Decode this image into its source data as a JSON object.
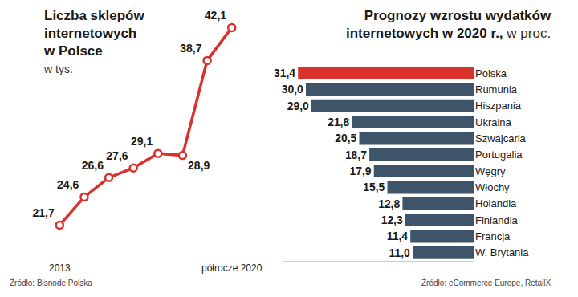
{
  "chart_data": [
    {
      "type": "line",
      "title": "Liczba sklepów internetowych w Polsce",
      "subtitle": "w tys.",
      "categories": [
        "2013",
        null,
        null,
        null,
        null,
        null,
        null,
        "półrocze 2020"
      ],
      "values": [
        21.7,
        24.6,
        26.6,
        27.6,
        29.1,
        28.9,
        38.7,
        42.1
      ],
      "value_labels": [
        "21,7",
        "24,6",
        "26,6",
        "27,6",
        "29,1",
        "28,9",
        "38,7",
        "42,1"
      ],
      "color": "#d9322d",
      "marker": "circle",
      "line_style": "solid",
      "data_labels": true,
      "ylim": [
        18,
        43.5
      ],
      "yticks": [],
      "tick_labels": "x",
      "grid": false,
      "source": "Źródło: Bisnode Polska"
    },
    {
      "type": "bar",
      "orientation": "horizontal",
      "title": "Prognozy wzrostu wydatków internetowych w 2020 r.,",
      "subtitle": "w proc.",
      "categories": [
        "Polska",
        "Rumunia",
        "Hiszpania",
        "Ukraina",
        "Szwajcaria",
        "Portugalia",
        "Węgry",
        "Włochy",
        "Holandia",
        "Finlandia",
        "Francja",
        "W. Brytania"
      ],
      "values": [
        31.4,
        30.0,
        29.0,
        21.8,
        20.5,
        18.7,
        17.9,
        15.5,
        12.8,
        12.3,
        11.4,
        11.0
      ],
      "value_labels": [
        "31,4",
        "30,0",
        "29,0",
        "21,8",
        "20,5",
        "18,7",
        "17,9",
        "15,5",
        "12,8",
        "12,3",
        "11,4",
        "11,0"
      ],
      "colors": [
        "#d9322d",
        "#3e5468",
        "#3e5468",
        "#3e5468",
        "#3e5468",
        "#3e5468",
        "#3e5468",
        "#3e5468",
        "#3e5468",
        "#3e5468",
        "#3e5468",
        "#3e5468"
      ],
      "data_labels": true,
      "xlim": [
        0,
        34
      ],
      "xticks": [],
      "tick_labels": "y",
      "grid": false,
      "source": "Źródło: eCommerce Europe, RetailX"
    }
  ]
}
